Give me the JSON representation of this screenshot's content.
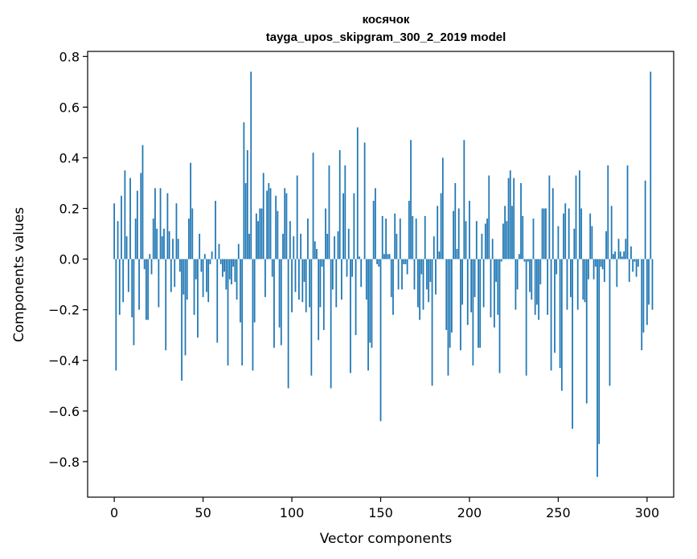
{
  "chart_data": {
    "type": "bar",
    "title": "косячок",
    "subtitle": "tayga_upos_skipgram_300_2_2019 model",
    "xlabel": "Vector components",
    "ylabel": "Components values",
    "xlim": [
      -15,
      315
    ],
    "ylim": [
      -0.94,
      0.82
    ],
    "xticks": [
      0,
      50,
      100,
      150,
      200,
      250,
      300
    ],
    "xtick_labels": [
      "0",
      "50",
      "100",
      "150",
      "200",
      "250",
      "300"
    ],
    "yticks": [
      -0.8,
      -0.6,
      -0.4,
      -0.2,
      0.0,
      0.2,
      0.4,
      0.6,
      0.8
    ],
    "ytick_labels": [
      "−0.8",
      "−0.6",
      "−0.4",
      "−0.2",
      "0.0",
      "0.2",
      "0.4",
      "0.6",
      "0.8"
    ],
    "grid": false,
    "bar_color": "#1f77b4",
    "values": [
      0.22,
      -0.44,
      0.15,
      -0.22,
      0.25,
      -0.17,
      0.35,
      0.09,
      -0.13,
      0.32,
      -0.23,
      -0.34,
      0.16,
      0.27,
      -0.2,
      0.34,
      0.45,
      -0.04,
      -0.24,
      -0.24,
      0.02,
      -0.06,
      0.16,
      0.28,
      0.12,
      -0.19,
      0.28,
      0.09,
      0.12,
      -0.36,
      0.26,
      0.11,
      -0.13,
      0.08,
      -0.11,
      0.22,
      0.08,
      -0.05,
      -0.48,
      -0.14,
      -0.38,
      -0.16,
      0.16,
      0.38,
      0.2,
      -0.22,
      -0.08,
      -0.31,
      0.1,
      -0.05,
      -0.15,
      0.02,
      -0.13,
      -0.17,
      -0.02,
      0.03,
      0.0,
      0.23,
      -0.33,
      0.06,
      -0.02,
      -0.07,
      -0.05,
      -0.12,
      -0.42,
      -0.08,
      -0.1,
      -0.03,
      -0.09,
      -0.16,
      0.06,
      -0.25,
      -0.42,
      0.54,
      0.3,
      0.43,
      0.1,
      0.74,
      -0.44,
      -0.25,
      0.18,
      0.15,
      0.2,
      0.2,
      0.34,
      -0.15,
      0.27,
      0.3,
      0.28,
      -0.07,
      -0.35,
      0.25,
      0.19,
      -0.27,
      -0.34,
      0.1,
      0.28,
      0.26,
      -0.51,
      0.15,
      -0.21,
      0.09,
      -0.13,
      0.33,
      -0.16,
      0.1,
      -0.17,
      -0.09,
      -0.21,
      0.16,
      -0.19,
      -0.46,
      0.42,
      0.07,
      0.04,
      -0.32,
      -0.19,
      -0.03,
      -0.28,
      0.2,
      0.1,
      0.37,
      -0.51,
      -0.12,
      0.09,
      -0.19,
      0.11,
      0.43,
      -0.16,
      0.26,
      0.37,
      -0.07,
      0.12,
      -0.45,
      -0.07,
      0.26,
      -0.3,
      0.52,
      0.01,
      -0.11,
      0.0,
      0.46,
      -0.16,
      -0.44,
      -0.33,
      -0.35,
      0.23,
      0.28,
      -0.02,
      -0.03,
      -0.64,
      0.17,
      0.02,
      0.16,
      0.02,
      0.02,
      -0.15,
      -0.22,
      0.18,
      0.1,
      -0.12,
      0.16,
      -0.12,
      -0.02,
      -0.02,
      -0.06,
      0.23,
      0.47,
      0.17,
      -0.12,
      0.16,
      -0.19,
      -0.24,
      -0.06,
      -0.2,
      0.17,
      -0.12,
      -0.17,
      -0.09,
      -0.5,
      0.09,
      -0.14,
      0.21,
      0.03,
      0.26,
      0.4,
      0.0,
      -0.28,
      -0.46,
      -0.35,
      -0.29,
      0.19,
      0.3,
      0.04,
      0.2,
      -0.36,
      -0.18,
      0.47,
      0.15,
      -0.26,
      0.23,
      -0.21,
      -0.42,
      -0.15,
      0.15,
      -0.35,
      -0.35,
      0.1,
      -0.19,
      0.14,
      0.16,
      0.33,
      -0.23,
      0.08,
      -0.27,
      -0.09,
      -0.22,
      -0.45,
      -0.01,
      0.14,
      0.21,
      0.15,
      0.32,
      0.35,
      0.21,
      0.32,
      -0.2,
      -0.12,
      0.02,
      0.3,
      0.17,
      -0.01,
      -0.46,
      -0.01,
      -0.13,
      -0.16,
      0.16,
      -0.22,
      -0.18,
      -0.24,
      -0.1,
      0.2,
      0.2,
      0.2,
      -0.22,
      0.33,
      -0.44,
      0.28,
      -0.37,
      -0.06,
      0.13,
      -0.43,
      -0.52,
      0.18,
      0.22,
      -0.2,
      0.2,
      -0.15,
      -0.67,
      0.12,
      0.33,
      -0.2,
      0.35,
      0.2,
      -0.16,
      -0.17,
      -0.57,
      -0.08,
      0.18,
      0.13,
      -0.08,
      -0.03,
      -0.86,
      -0.73,
      -0.03,
      -0.04,
      -0.09,
      0.11,
      0.37,
      -0.5,
      0.21,
      0.02,
      0.03,
      -0.11,
      0.08,
      0.03,
      0.01,
      0.03,
      0.08,
      0.37,
      -0.09,
      0.05,
      -0.05,
      -0.01,
      -0.07,
      -0.03,
      0.0,
      -0.36,
      -0.29,
      0.31,
      -0.26,
      -0.18,
      0.74,
      -0.2
    ]
  }
}
